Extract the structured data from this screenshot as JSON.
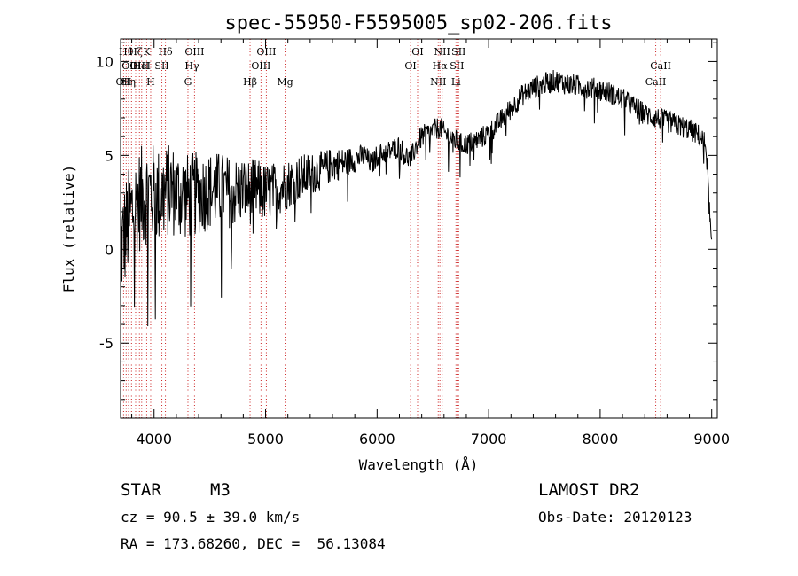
{
  "chart_data": {
    "type": "line",
    "title": "spec-55950-F5595005_sp02-206.fits",
    "xlabel": "Wavelength (Å)",
    "ylabel": "Flux (relative)",
    "xlim": [
      3700,
      9050
    ],
    "ylim": [
      -9,
      11.2
    ],
    "xticks": [
      4000,
      5000,
      6000,
      7000,
      8000,
      9000
    ],
    "yticks": [
      -5,
      0,
      5,
      10
    ],
    "spectrum_envelope": {
      "x": [
        3700,
        3750,
        3800,
        3850,
        3900,
        3950,
        4000,
        4050,
        4100,
        4150,
        4200,
        4300,
        4400,
        4500,
        4600,
        4700,
        4800,
        4861,
        4900,
        5000,
        5100,
        5200,
        5300,
        5400,
        5500,
        5600,
        5700,
        5800,
        5890,
        5950,
        6000,
        6100,
        6200,
        6250,
        6300,
        6350,
        6400,
        6500,
        6563,
        6600,
        6650,
        6700,
        6750,
        6800,
        6900,
        7000,
        7100,
        7200,
        7300,
        7400,
        7500,
        7600,
        7700,
        7800,
        7900,
        8000,
        8100,
        8200,
        8300,
        8400,
        8500,
        8600,
        8700,
        8800,
        8900,
        8950,
        8980,
        9000
      ],
      "y": [
        0,
        1.0,
        2.0,
        2.5,
        2.8,
        3.0,
        3.0,
        2.8,
        3.0,
        3.2,
        3.0,
        2.8,
        3.0,
        3.1,
        3.2,
        3.0,
        3.2,
        3.0,
        3.2,
        3.0,
        3.2,
        3.5,
        3.8,
        4.0,
        4.2,
        4.5,
        4.6,
        4.8,
        5.0,
        4.5,
        5.0,
        5.2,
        5.5,
        5.0,
        4.8,
        5.5,
        6.0,
        6.3,
        6.5,
        6.2,
        6.0,
        5.8,
        5.6,
        5.6,
        5.8,
        6.2,
        6.8,
        7.5,
        8.2,
        8.6,
        8.8,
        9.0,
        8.8,
        8.7,
        8.6,
        8.5,
        8.3,
        8.0,
        7.6,
        7.2,
        7.0,
        6.8,
        6.6,
        6.4,
        6.0,
        5.5,
        2.0,
        0
      ],
      "noise_amplitude_blue": 3.0,
      "noise_amplitude_red": 0.6
    },
    "line_markers": [
      {
        "x": 3727,
        "label": "OII",
        "row": 3
      },
      {
        "x": 3750,
        "label": "Hθ",
        "row": 1
      },
      {
        "x": 3771,
        "label": "Hη",
        "row": 3
      },
      {
        "x": 3798,
        "label": "OIII",
        "row": 2
      },
      {
        "x": 3835,
        "label": "Hζ",
        "row": 1
      },
      {
        "x": 3869,
        "label": "OIII",
        "row": 2
      },
      {
        "x": 3889,
        "label": "HeI",
        "row": 2
      },
      {
        "x": 3934,
        "label": "K",
        "row": 1
      },
      {
        "x": 3970,
        "label": "H",
        "row": 3
      },
      {
        "x": 4070,
        "label": "SII",
        "row": 2
      },
      {
        "x": 4102,
        "label": "Hδ",
        "row": 1
      },
      {
        "x": 4304,
        "label": "G",
        "row": 3
      },
      {
        "x": 4340,
        "label": "Hγ",
        "row": 2
      },
      {
        "x": 4363,
        "label": "OIII",
        "row": 1
      },
      {
        "x": 4861,
        "label": "Hβ",
        "row": 3
      },
      {
        "x": 4959,
        "label": "OIII",
        "row": 2
      },
      {
        "x": 5007,
        "label": "OIII",
        "row": 1
      },
      {
        "x": 5175,
        "label": "Mg",
        "row": 3
      },
      {
        "x": 6300,
        "label": "OI",
        "row": 2
      },
      {
        "x": 6363,
        "label": "OI",
        "row": 1
      },
      {
        "x": 6548,
        "label": "NII",
        "row": 3
      },
      {
        "x": 6563,
        "label": "Hα",
        "row": 2
      },
      {
        "x": 6583,
        "label": "NII",
        "row": 1
      },
      {
        "x": 6707,
        "label": "Li",
        "row": 3
      },
      {
        "x": 6716,
        "label": "SII",
        "row": 2
      },
      {
        "x": 6731,
        "label": "SII",
        "row": 1
      },
      {
        "x": 8498,
        "label": "CaII",
        "row": 3
      },
      {
        "x": 8542,
        "label": "CaII",
        "row": 2
      }
    ],
    "colors": {
      "line": "#000000",
      "marker": "#cc2222",
      "axis": "#000000"
    }
  },
  "info": {
    "class_label": "STAR",
    "subclass": "M3",
    "survey": "LAMOST DR2",
    "redshift_line": "cz = 90.5 ± 39.0 km/s",
    "obs_date_line": "Obs-Date: 20120123",
    "coords_line": "RA = 173.68260, DEC =  56.13084"
  }
}
